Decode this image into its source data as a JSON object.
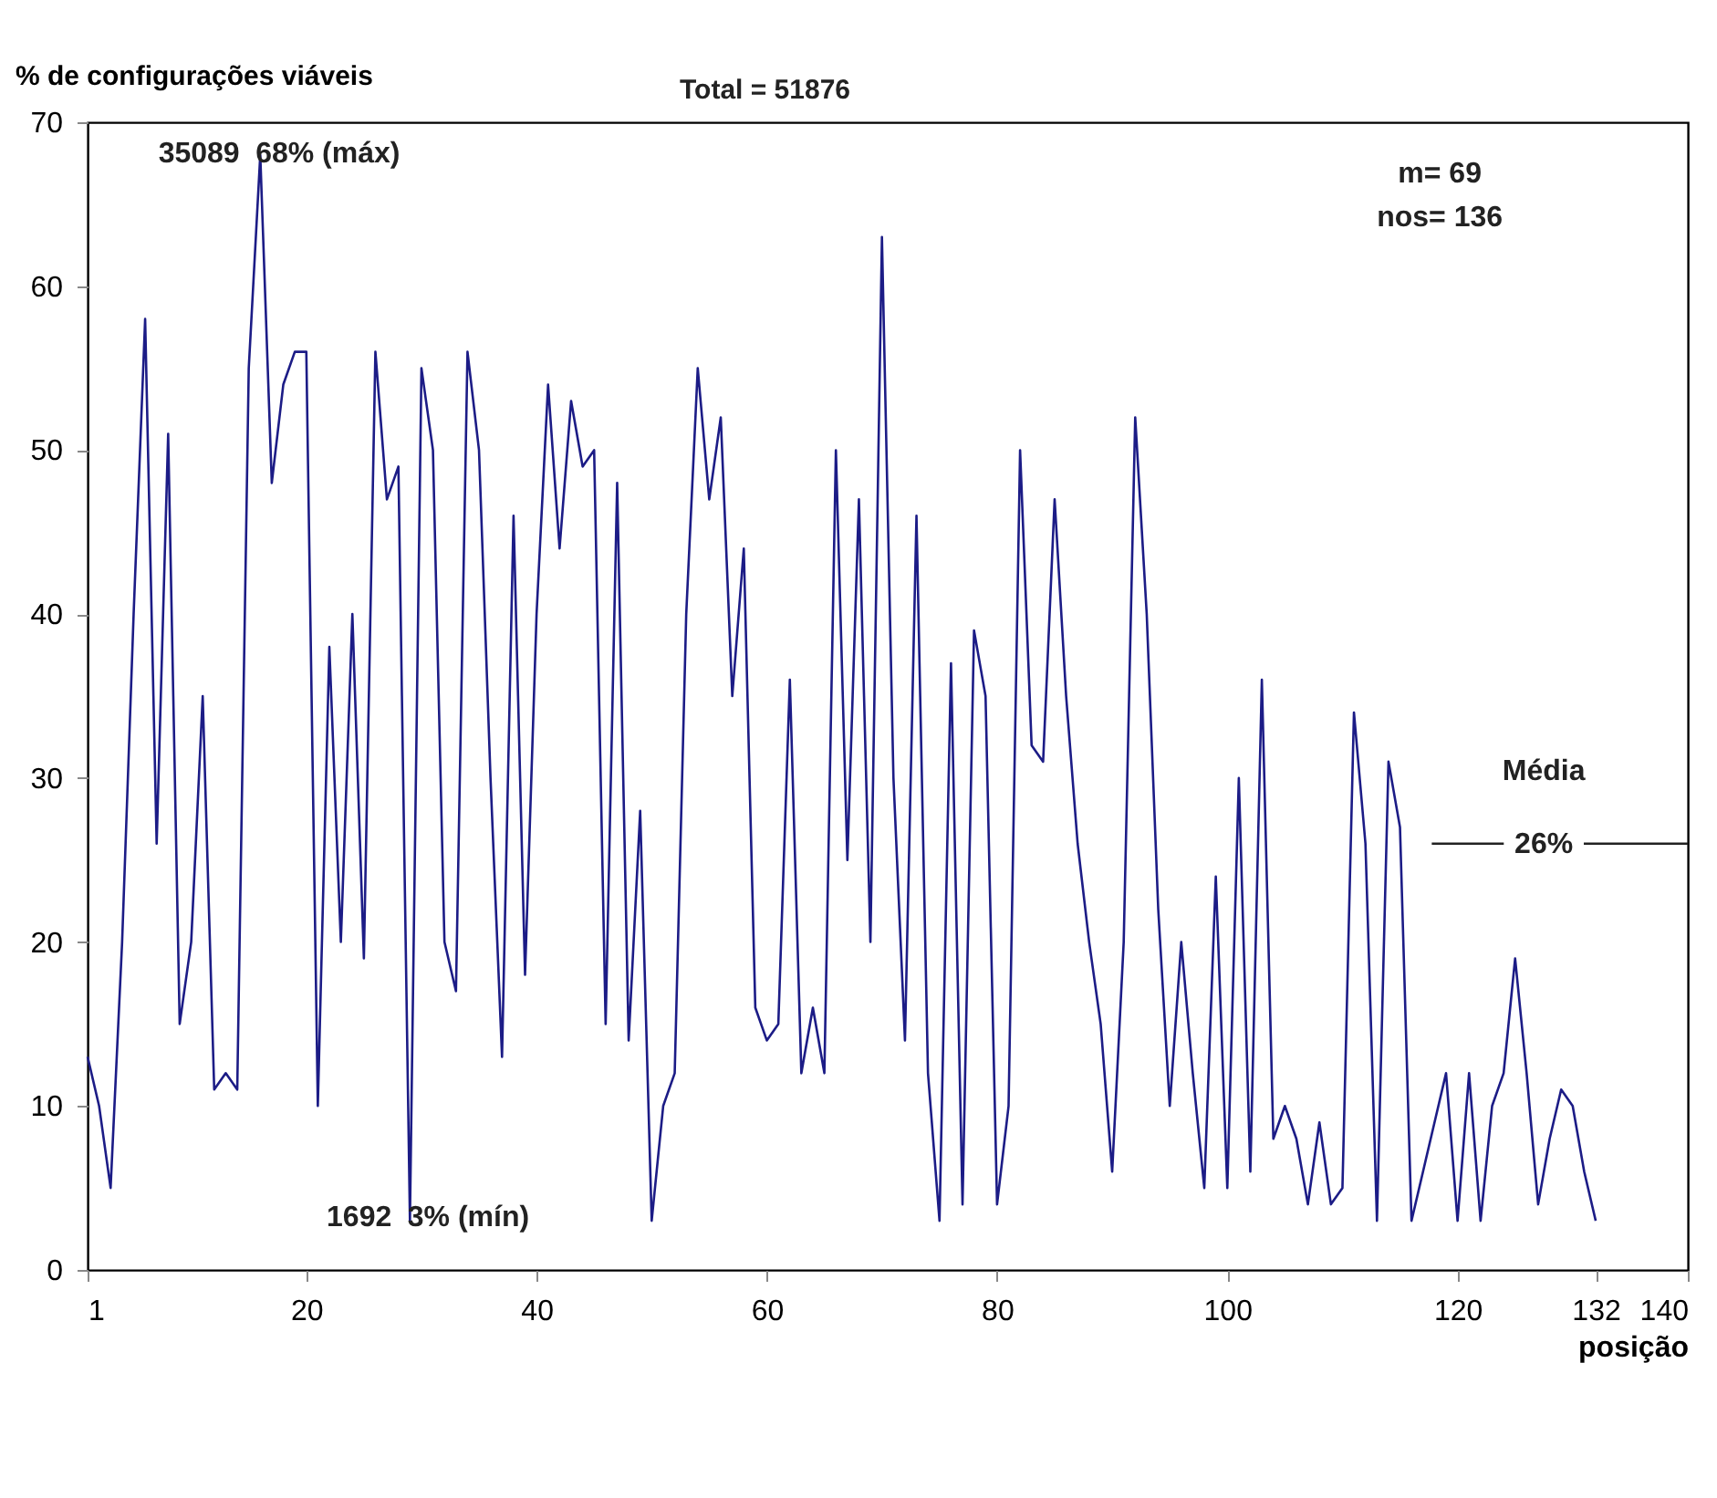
{
  "chart_data": {
    "type": "line",
    "ylabel": "% de configurações viáveis",
    "xlabel": "posição",
    "x": [
      1,
      2,
      3,
      4,
      5,
      6,
      7,
      8,
      9,
      10,
      11,
      12,
      13,
      14,
      15,
      16,
      17,
      18,
      19,
      20,
      21,
      22,
      23,
      24,
      25,
      26,
      27,
      28,
      29,
      30,
      31,
      32,
      33,
      34,
      35,
      36,
      37,
      38,
      39,
      40,
      41,
      42,
      43,
      44,
      45,
      46,
      47,
      48,
      49,
      50,
      51,
      52,
      53,
      54,
      55,
      56,
      57,
      58,
      59,
      60,
      61,
      62,
      63,
      64,
      65,
      66,
      67,
      68,
      69,
      70,
      71,
      72,
      73,
      74,
      75,
      76,
      77,
      78,
      79,
      80,
      81,
      82,
      83,
      84,
      85,
      86,
      87,
      88,
      89,
      90,
      91,
      92,
      93,
      94,
      95,
      96,
      97,
      98,
      99,
      100,
      101,
      102,
      103,
      104,
      105,
      106,
      107,
      108,
      109,
      110,
      111,
      112,
      113,
      114,
      115,
      116,
      117,
      118,
      119,
      120,
      121,
      122,
      123,
      124,
      125,
      126,
      127,
      128,
      129,
      130,
      131,
      132
    ],
    "series": [
      {
        "color": "#1c1c86",
        "values": [
          13,
          10,
          5,
          20,
          40,
          58,
          26,
          51,
          15,
          20,
          35,
          11,
          12,
          11,
          55,
          68,
          48,
          54,
          56,
          56,
          10,
          38,
          20,
          40,
          19,
          56,
          47,
          49,
          3,
          55,
          50,
          20,
          17,
          56,
          50,
          30,
          13,
          46,
          18,
          40,
          54,
          44,
          53,
          49,
          50,
          15,
          48,
          14,
          28,
          3,
          10,
          12,
          40,
          55,
          47,
          52,
          35,
          44,
          16,
          14,
          15,
          36,
          12,
          16,
          12,
          50,
          25,
          47,
          20,
          63,
          30,
          14,
          46,
          12,
          3,
          37,
          4,
          39,
          35,
          4,
          10,
          50,
          32,
          31,
          47,
          35,
          26,
          20,
          15,
          6,
          20,
          52,
          40,
          22,
          10,
          20,
          12,
          5,
          24,
          5,
          30,
          6,
          36,
          8,
          10,
          8,
          4,
          9,
          4,
          5,
          34,
          26,
          3,
          31,
          27,
          3,
          6,
          9,
          12,
          3,
          12,
          3,
          10,
          12,
          19,
          12,
          4,
          8,
          11,
          10,
          6,
          3
        ]
      }
    ],
    "xlim": [
      1,
      140
    ],
    "xticks": [
      1,
      20,
      40,
      60,
      80,
      100,
      120,
      132,
      140
    ],
    "ylim": [
      0,
      70
    ],
    "yticks": [
      0,
      10,
      20,
      30,
      40,
      50,
      60,
      70
    ],
    "grid": false,
    "marker": "none",
    "line_style": "solid",
    "ref_lines": [
      {
        "axis": "y",
        "value": 26,
        "label": "26%"
      }
    ],
    "annotations": [
      "Total =  51876",
      "m= 69",
      "nos= 136",
      "35089",
      "68% (máx)",
      "1692",
      "3% (mín)",
      "Média"
    ]
  }
}
